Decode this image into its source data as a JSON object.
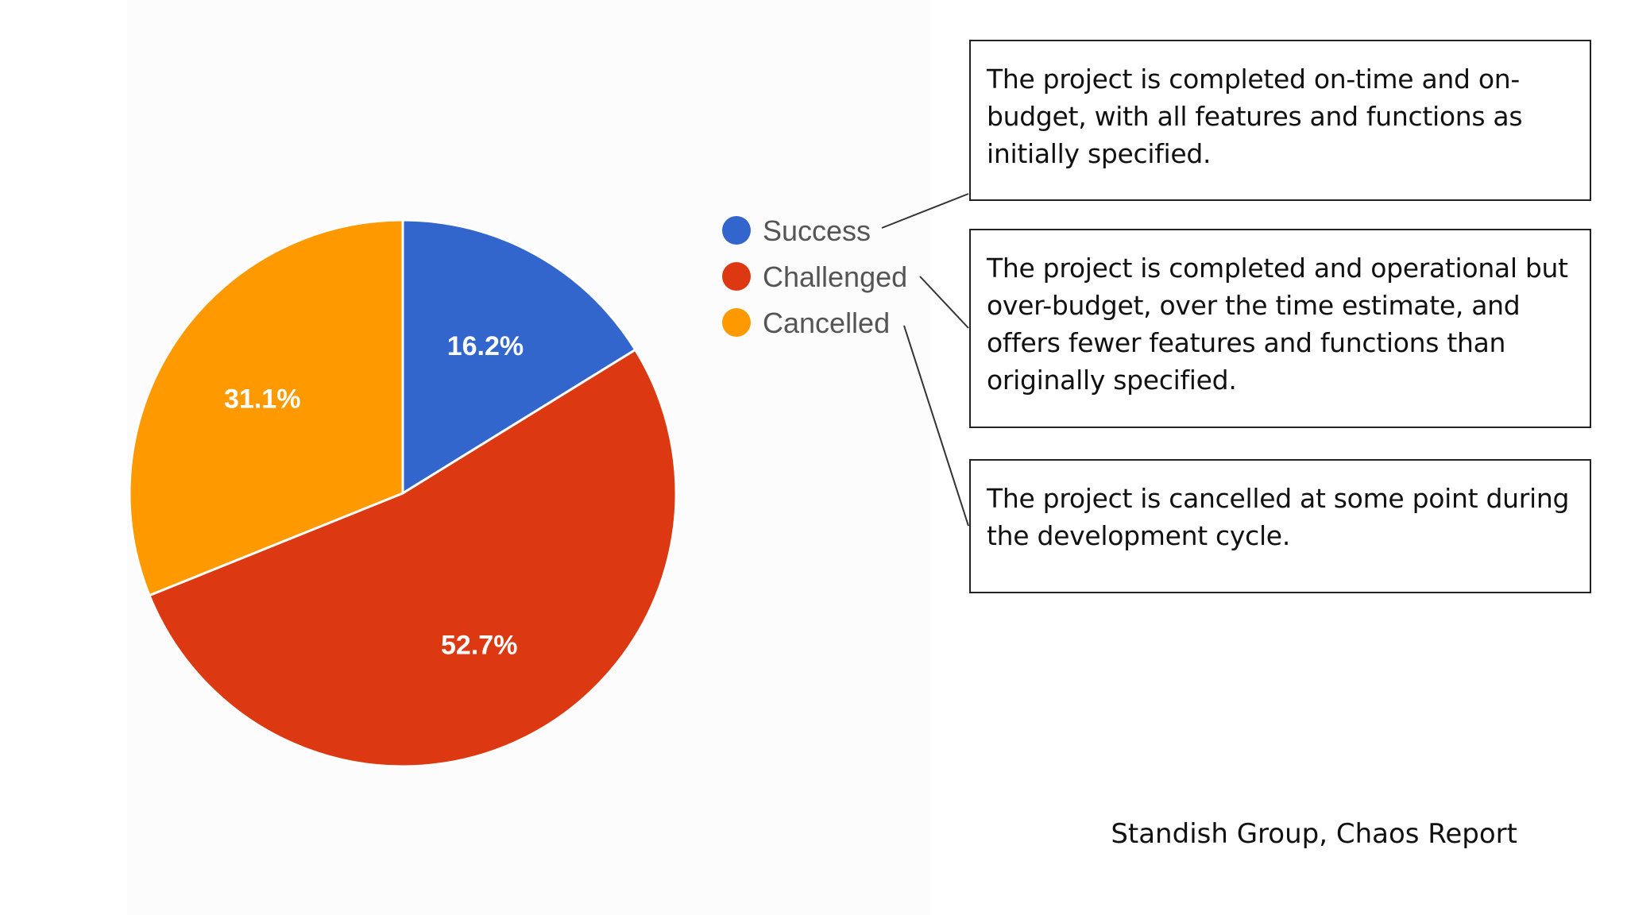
{
  "chart_data": {
    "type": "pie",
    "slices": [
      {
        "name": "Success",
        "value": 16.2,
        "label": "16.2%",
        "color": "#3366cc"
      },
      {
        "name": "Challenged",
        "value": 52.7,
        "label": "52.7%",
        "color": "#dc3912"
      },
      {
        "name": "Cancelled",
        "value": 31.1,
        "label": "31.1%",
        "color": "#ff9900"
      }
    ],
    "legend": [
      "Success",
      "Challenged",
      "Cancelled"
    ],
    "legend_position": "right",
    "start_angle_deg": 0,
    "direction": "clockwise"
  },
  "descriptions": [
    {
      "category": "Success",
      "text": "The project is completed on-time and on-budget, with all features and functions as initially specified."
    },
    {
      "category": "Challenged",
      "text": "The project is completed and operational but over-budget, over the time estimate, and offers fewer features and functions than originally specified."
    },
    {
      "category": "Cancelled",
      "text": "The project is cancelled at some point during the development cycle."
    }
  ],
  "source": "Standish Group, Chaos Report"
}
